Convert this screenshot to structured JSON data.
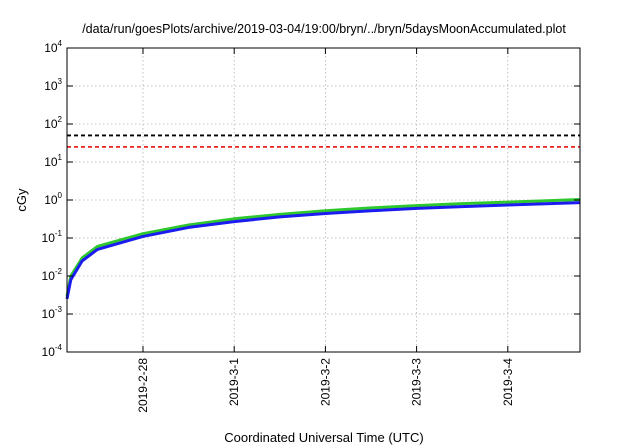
{
  "chart_data": {
    "type": "line",
    "title": "/data/run/goesPlots/archive/2019-03-04/19:00/bryn/../bryn/5daysMoonAccumulated.plot",
    "xlabel": "Coordinated Universal Time (UTC)",
    "ylabel": "cGy",
    "y_scale": "log",
    "ylim": [
      0.0001,
      10000
    ],
    "y_ticks": [
      {
        "base": "10",
        "exp": "-4"
      },
      {
        "base": "10",
        "exp": "-3"
      },
      {
        "base": "10",
        "exp": "-2"
      },
      {
        "base": "10",
        "exp": "-1"
      },
      {
        "base": "10",
        "exp": "0"
      },
      {
        "base": "10",
        "exp": "1"
      },
      {
        "base": "10",
        "exp": "2"
      },
      {
        "base": "10",
        "exp": "3"
      },
      {
        "base": "10",
        "exp": "4"
      }
    ],
    "xlim": [
      "2019-02-27T04:00",
      "2019-03-04T19:00"
    ],
    "x_ticks": [
      "2019-2-28",
      "2019-3-1",
      "2019-3-2",
      "2019-3-3",
      "2019-3-4"
    ],
    "grid": true,
    "reference_lines": [
      {
        "value": 50,
        "color": "#000000",
        "style": "dashed"
      },
      {
        "value": 25,
        "color": "#e8231f",
        "style": "dashed"
      }
    ],
    "series": [
      {
        "color": "#2ec82e",
        "x": [
          "2019-02-27T04:00",
          "2019-02-27T05:00",
          "2019-02-27T08:00",
          "2019-02-27T12:00",
          "2019-02-28T00:00",
          "2019-02-28T12:00",
          "2019-03-01T00:00",
          "2019-03-01T12:00",
          "2019-03-02T00:00",
          "2019-03-02T12:00",
          "2019-03-03T00:00",
          "2019-03-03T12:00",
          "2019-03-04T00:00",
          "2019-03-04T12:00",
          "2019-03-04T19:00"
        ],
        "values": [
          0.003,
          0.01,
          0.03,
          0.06,
          0.13,
          0.22,
          0.32,
          0.42,
          0.52,
          0.62,
          0.71,
          0.8,
          0.88,
          0.97,
          1.03
        ]
      },
      {
        "color": "#1c1cf0",
        "x": [
          "2019-02-27T04:00",
          "2019-02-27T05:00",
          "2019-02-27T08:00",
          "2019-02-27T12:00",
          "2019-02-28T00:00",
          "2019-02-28T12:00",
          "2019-03-01T00:00",
          "2019-03-01T12:00",
          "2019-03-02T00:00",
          "2019-03-02T12:00",
          "2019-03-03T00:00",
          "2019-03-03T12:00",
          "2019-03-04T00:00",
          "2019-03-04T12:00",
          "2019-03-04T19:00"
        ],
        "values": [
          0.0025,
          0.008,
          0.025,
          0.05,
          0.11,
          0.19,
          0.27,
          0.36,
          0.44,
          0.52,
          0.6,
          0.67,
          0.74,
          0.81,
          0.85
        ]
      }
    ]
  }
}
